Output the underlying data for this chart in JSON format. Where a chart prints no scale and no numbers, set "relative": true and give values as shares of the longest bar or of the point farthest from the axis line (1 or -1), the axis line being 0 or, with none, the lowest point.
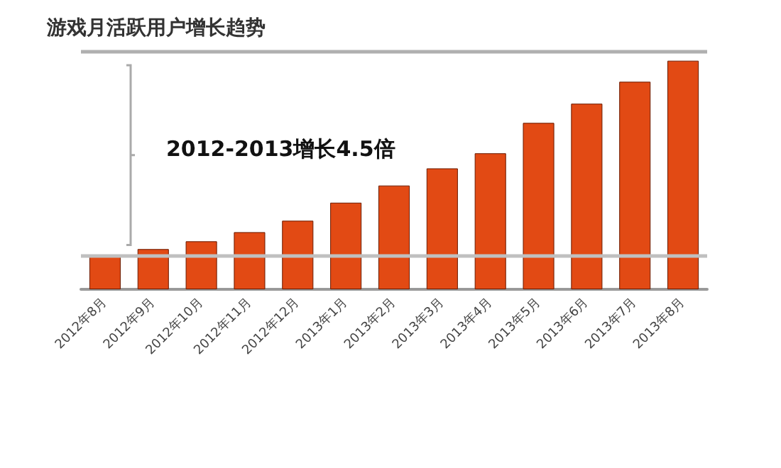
{
  "chart_data": {
    "type": "bar",
    "title": "游戏月活跃用户增长趋势",
    "categories": [
      "2012年8月",
      "2012年9月",
      "2012年10月",
      "2012年11月",
      "2012年12月",
      "2013年1月",
      "2013年2月",
      "2013年3月",
      "2013年4月",
      "2013年5月",
      "2013年6月",
      "2013年7月",
      "2013年8月"
    ],
    "values": [
      0.143,
      0.176,
      0.21,
      0.25,
      0.3,
      0.379,
      0.454,
      0.529,
      0.595,
      0.728,
      0.812,
      0.908,
      1
    ],
    "color": "#e24a14",
    "relative": true,
    "ref_lines": [
      {
        "axis": "y",
        "value": 0.15,
        "color": "#c0c0c0"
      },
      {
        "axis": "y",
        "value": 1.036,
        "color": "#b0b0b0"
      }
    ],
    "annotations": [
      "2012-2013增长4.5倍"
    ]
  }
}
